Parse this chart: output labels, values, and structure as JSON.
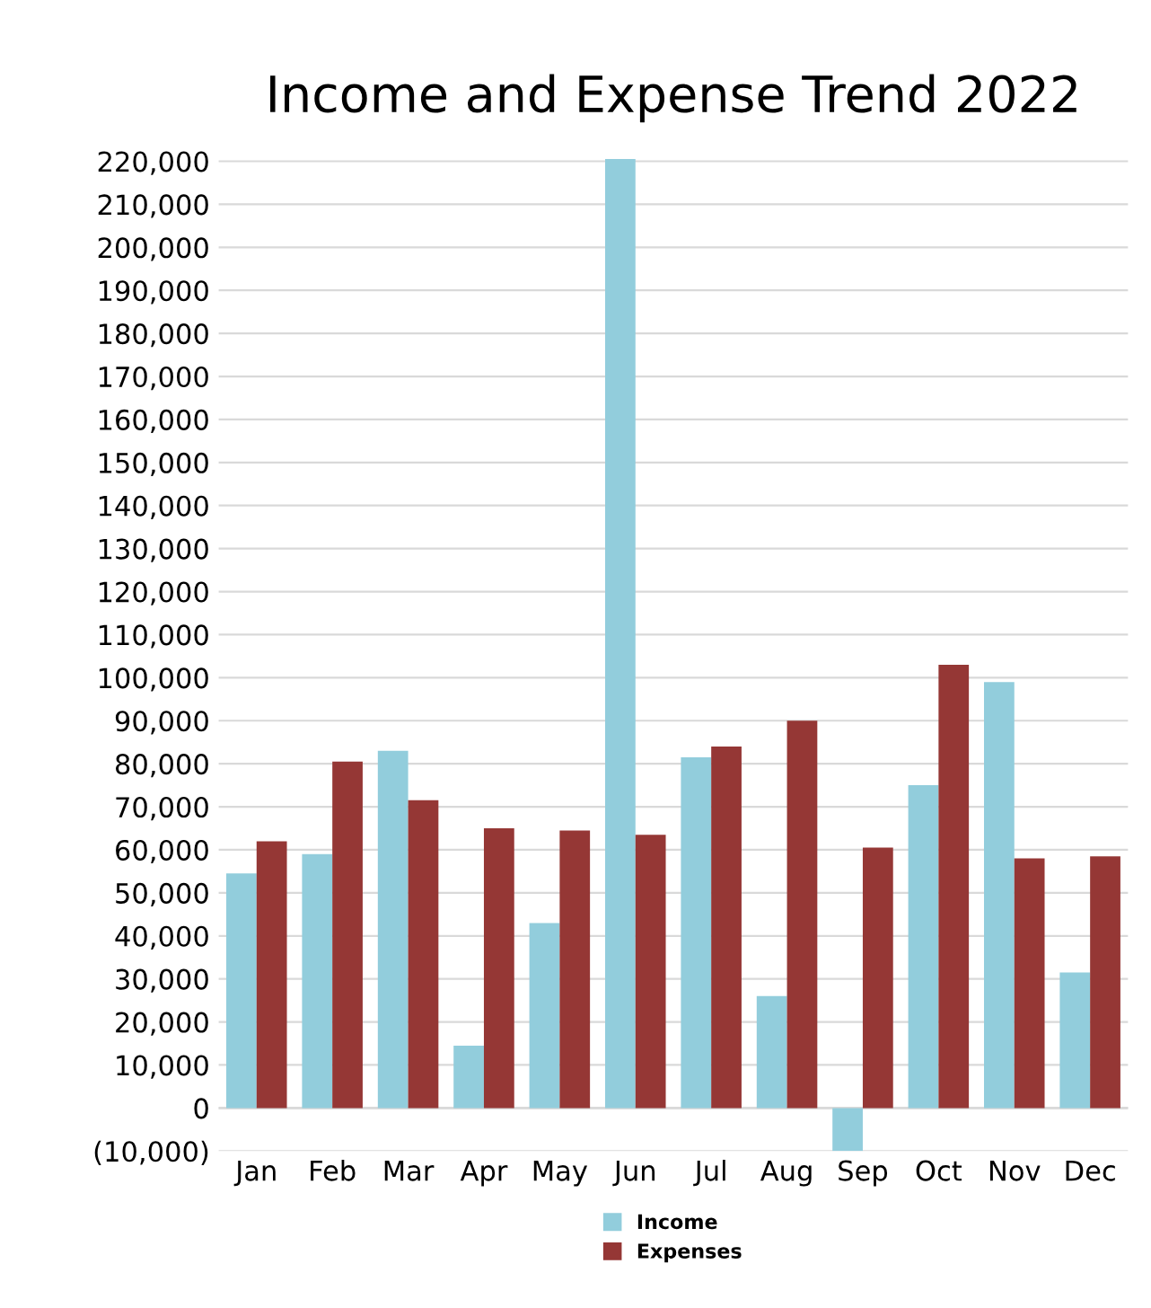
{
  "chart_data": {
    "type": "bar",
    "title": "Income and Expense Trend 2022",
    "categories": [
      "Jan",
      "Feb",
      "Mar",
      "Apr",
      "May",
      "Jun",
      "Jul",
      "Aug",
      "Sep",
      "Oct",
      "Nov",
      "Dec"
    ],
    "series": [
      {
        "name": "Income",
        "color": "#92cddc",
        "values": [
          54500,
          59000,
          83000,
          14500,
          43000,
          220500,
          81500,
          26000,
          -10000,
          75000,
          99000,
          31500
        ]
      },
      {
        "name": "Expenses",
        "color": "#953735",
        "values": [
          62000,
          80500,
          71500,
          65000,
          64500,
          63500,
          84000,
          90000,
          60500,
          103000,
          58000,
          58500
        ]
      }
    ],
    "ylim": [
      -10000,
      221000
    ],
    "yticks": [
      {
        "value": -10000,
        "label": "(10,000)"
      },
      0,
      {
        "value": 10000,
        "label": "10,000"
      },
      {
        "value": 20000,
        "label": "20,000"
      },
      {
        "value": 30000,
        "label": "30,000"
      },
      {
        "value": 40000,
        "label": "40,000"
      },
      {
        "value": 50000,
        "label": "50,000"
      },
      {
        "value": 60000,
        "label": "60,000"
      },
      {
        "value": 70000,
        "label": "70,000"
      },
      {
        "value": 80000,
        "label": "80,000"
      },
      {
        "value": 90000,
        "label": "90,000"
      },
      {
        "value": 100000,
        "label": "100,000"
      },
      {
        "value": 110000,
        "label": "110,000"
      },
      {
        "value": 120000,
        "label": "120,000"
      },
      {
        "value": 130000,
        "label": "130,000"
      },
      {
        "value": 140000,
        "label": "140,000"
      },
      {
        "value": 150000,
        "label": "150,000"
      },
      {
        "value": 160000,
        "label": "160,000"
      },
      {
        "value": 170000,
        "label": "170,000"
      },
      {
        "value": 180000,
        "label": "180,000"
      },
      {
        "value": 190000,
        "label": "190,000"
      },
      {
        "value": 200000,
        "label": "200,000"
      },
      {
        "value": 210000,
        "label": "210,000"
      },
      {
        "value": 220000,
        "label": "220,000"
      }
    ],
    "grid": "y",
    "legend": "bottom"
  }
}
